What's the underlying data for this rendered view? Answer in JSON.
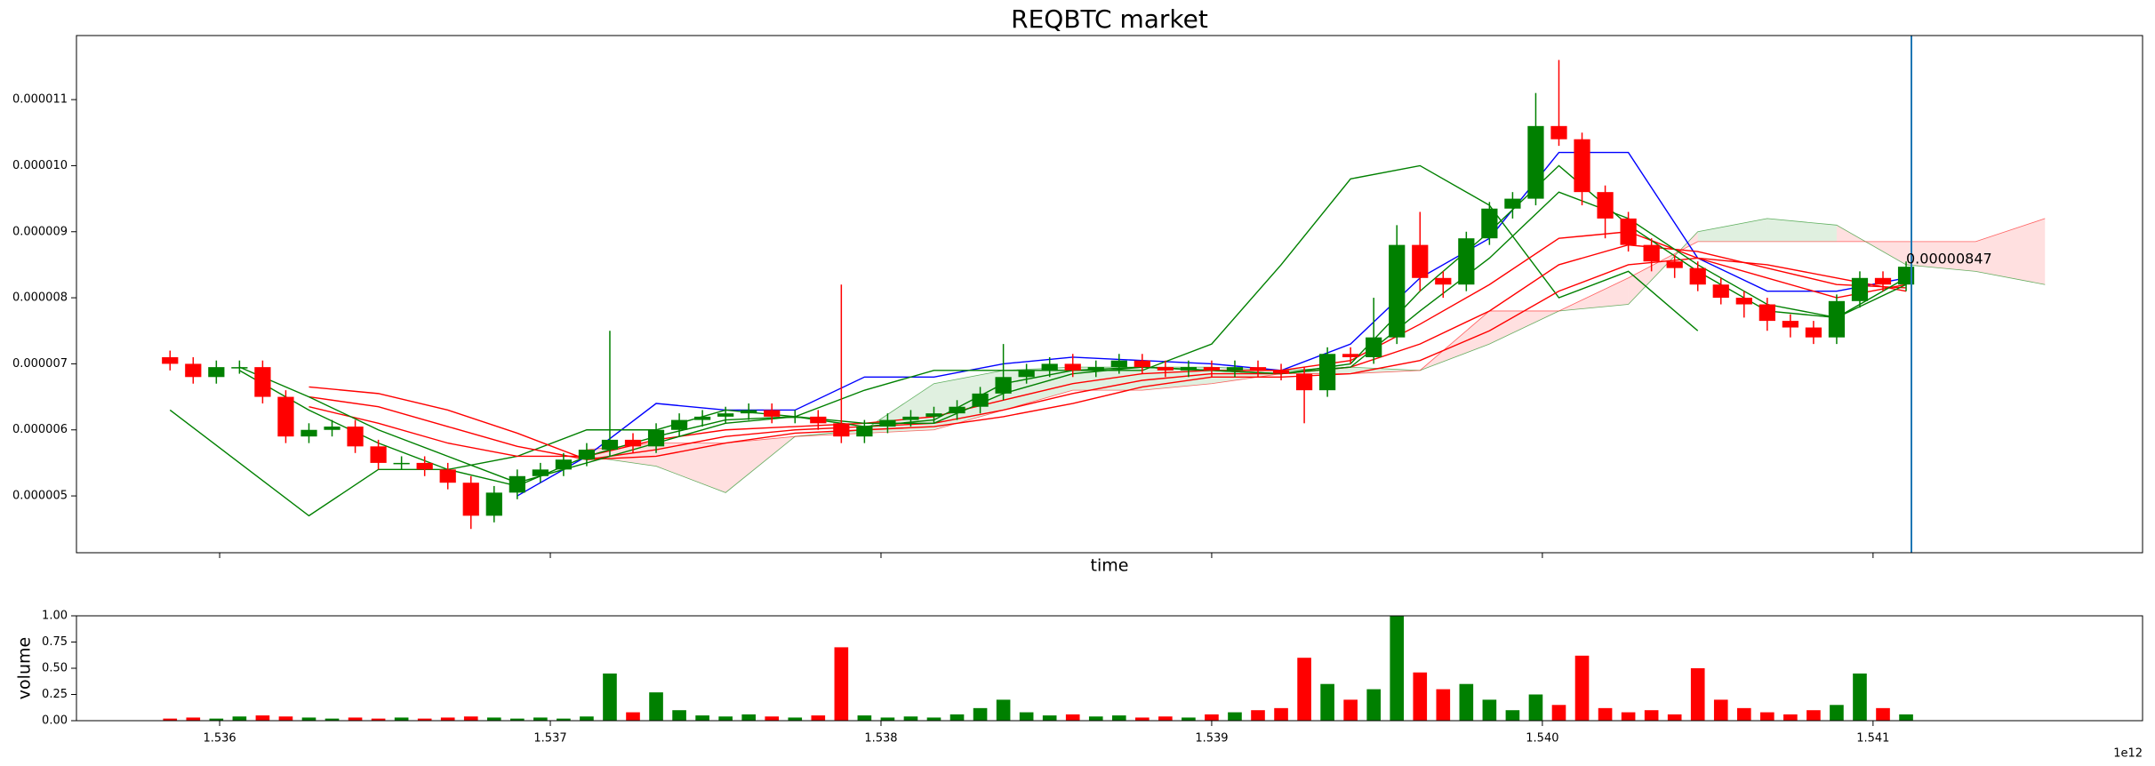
{
  "chart_data": {
    "type": "candlestick",
    "title": "REQBTC market",
    "x_label": "time",
    "y_label": "volume",
    "x_offset_label": "1e12",
    "xlim": [
      1.535567,
      1.541815
    ],
    "ylim": [
      4.14e-06,
      1.197e-05
    ],
    "xticks": [
      1.536,
      1.537,
      1.538,
      1.539,
      1.54,
      {
        "value": 1.54,
        "label": "1.540"
      },
      1.541
    ],
    "yticks": [
      {
        "value": 5e-06,
        "label": "0.000005"
      },
      {
        "value": 6e-06,
        "label": "0.000006"
      },
      {
        "value": 7e-06,
        "label": "0.000007"
      },
      {
        "value": 8e-06,
        "label": "0.000008"
      },
      {
        "value": 9e-06,
        "label": "0.000009"
      },
      {
        "value": 1e-05,
        "label": "0.000010"
      },
      {
        "value": 1.1e-05,
        "label": "0.000011"
      }
    ],
    "up_color": "#008000",
    "down_color": "#ff0000",
    "x": [
      1.53585,
      1.53592,
      1.53599,
      1.53606,
      1.53613,
      1.5362,
      1.53627,
      1.53634,
      1.53641,
      1.53648,
      1.53655,
      1.53662,
      1.53669,
      1.53676,
      1.53683,
      1.5369,
      1.53697,
      1.53704,
      1.53711,
      1.53718,
      1.53725,
      1.53732,
      1.53739,
      1.53746,
      1.53753,
      1.5376,
      1.53767,
      1.53774,
      1.53781,
      1.53788,
      1.53795,
      1.53802,
      1.53809,
      1.53816,
      1.53823,
      1.5383,
      1.53837,
      1.53844,
      1.53851,
      1.53858,
      1.53865,
      1.53872,
      1.53879,
      1.53886,
      1.53893,
      1.539,
      1.53907,
      1.53914,
      1.53921,
      1.53928,
      1.53935,
      1.53942,
      1.53949,
      1.53956,
      1.53963,
      1.5397,
      1.53977,
      1.53984,
      1.53991,
      1.53998,
      1.54005,
      1.54012,
      1.54019,
      1.54026,
      1.54033,
      1.5404,
      1.54047,
      1.54054,
      1.54061,
      1.54068,
      1.54075,
      1.54082,
      1.54089,
      1.54096,
      1.54103,
      1.5411
    ],
    "open": [
      7.1e-06,
      7e-06,
      6.8e-06,
      6.95e-06,
      6.95e-06,
      6.5e-06,
      5.9e-06,
      6e-06,
      6.05e-06,
      5.75e-06,
      5.5e-06,
      5.5e-06,
      5.4e-06,
      5.2e-06,
      4.7e-06,
      5.05e-06,
      5.3e-06,
      5.4e-06,
      5.55e-06,
      5.7e-06,
      5.85e-06,
      5.75e-06,
      6e-06,
      6.15e-06,
      6.2e-06,
      6.25e-06,
      6.3e-06,
      6.2e-06,
      6.2e-06,
      6.1e-06,
      5.9e-06,
      6.05e-06,
      6.15e-06,
      6.2e-06,
      6.25e-06,
      6.35e-06,
      6.55e-06,
      6.8e-06,
      6.9e-06,
      7e-06,
      6.9e-06,
      6.95e-06,
      7.05e-06,
      6.95e-06,
      6.9e-06,
      6.95e-06,
      6.9e-06,
      6.95e-06,
      6.9e-06,
      6.85e-06,
      6.6e-06,
      7.15e-06,
      7.1e-06,
      7.4e-06,
      8.8e-06,
      8.3e-06,
      8.2e-06,
      8.9e-06,
      9.35e-06,
      9.5e-06,
      1.06e-05,
      1.04e-05,
      9.6e-06,
      9.2e-06,
      8.8e-06,
      8.55e-06,
      8.45e-06,
      8.2e-06,
      8e-06,
      7.9e-06,
      7.65e-06,
      7.55e-06,
      7.4e-06,
      7.95e-06,
      8.3e-06,
      8.2e-06
    ],
    "high": [
      7.2e-06,
      7.1e-06,
      7.05e-06,
      7.05e-06,
      7.05e-06,
      6.6e-06,
      6.1e-06,
      6.15e-06,
      6.15e-06,
      5.85e-06,
      5.6e-06,
      5.6e-06,
      5.5e-06,
      5.3e-06,
      5.15e-06,
      5.4e-06,
      5.5e-06,
      5.65e-06,
      5.8e-06,
      7.5e-06,
      5.95e-06,
      6.1e-06,
      6.25e-06,
      6.3e-06,
      6.35e-06,
      6.4e-06,
      6.4e-06,
      6.3e-06,
      6.3e-06,
      8.2e-06,
      6.15e-06,
      6.25e-06,
      6.3e-06,
      6.35e-06,
      6.45e-06,
      6.65e-06,
      7.3e-06,
      7e-06,
      7.1e-06,
      7.15e-06,
      7.05e-06,
      7.15e-06,
      7.15e-06,
      7.05e-06,
      7.05e-06,
      7.05e-06,
      7.05e-06,
      7.05e-06,
      7e-06,
      6.95e-06,
      7.25e-06,
      7.25e-06,
      8e-06,
      9.1e-06,
      9.3e-06,
      8.4e-06,
      9e-06,
      9.45e-06,
      9.6e-06,
      1.11e-05,
      1.16e-05,
      1.05e-05,
      9.7e-06,
      9.3e-06,
      8.9e-06,
      8.65e-06,
      8.55e-06,
      8.3e-06,
      8.1e-06,
      8e-06,
      7.75e-06,
      7.65e-06,
      8.05e-06,
      8.4e-06,
      8.4e-06,
      8.55e-06
    ],
    "low": [
      6.9e-06,
      6.7e-06,
      6.7e-06,
      6.85e-06,
      6.4e-06,
      5.8e-06,
      5.8e-06,
      5.9e-06,
      5.65e-06,
      5.4e-06,
      5.4e-06,
      5.3e-06,
      5.1e-06,
      4.5e-06,
      4.6e-06,
      4.95e-06,
      5.2e-06,
      5.3e-06,
      5.45e-06,
      5.6e-06,
      5.65e-06,
      5.65e-06,
      5.9e-06,
      6.05e-06,
      6.1e-06,
      6.15e-06,
      6.1e-06,
      6.1e-06,
      6e-06,
      5.8e-06,
      5.8e-06,
      5.95e-06,
      6.05e-06,
      6.1e-06,
      6.15e-06,
      6.25e-06,
      6.45e-06,
      6.7e-06,
      6.8e-06,
      6.8e-06,
      6.8e-06,
      6.85e-06,
      6.85e-06,
      6.8e-06,
      6.8e-06,
      6.8e-06,
      6.8e-06,
      6.8e-06,
      6.75e-06,
      6.1e-06,
      6.5e-06,
      7e-06,
      7e-06,
      7.3e-06,
      8.1e-06,
      8e-06,
      8.1e-06,
      8.8e-06,
      9.2e-06,
      9.4e-06,
      1.03e-05,
      9.4e-06,
      8.9e-06,
      8.7e-06,
      8.4e-06,
      8.3e-06,
      8.1e-06,
      7.9e-06,
      7.7e-06,
      7.5e-06,
      7.4e-06,
      7.3e-06,
      7.3e-06,
      7.85e-06,
      8.1e-06,
      8.1e-06
    ],
    "close": [
      7e-06,
      6.8e-06,
      6.95e-06,
      6.95e-06,
      6.5e-06,
      5.9e-06,
      6e-06,
      6.05e-06,
      5.75e-06,
      5.5e-06,
      5.5e-06,
      5.4e-06,
      5.2e-06,
      4.7e-06,
      5.05e-06,
      5.3e-06,
      5.4e-06,
      5.55e-06,
      5.7e-06,
      5.85e-06,
      5.75e-06,
      6e-06,
      6.15e-06,
      6.2e-06,
      6.25e-06,
      6.3e-06,
      6.2e-06,
      6.2e-06,
      6.1e-06,
      5.9e-06,
      6.05e-06,
      6.15e-06,
      6.2e-06,
      6.25e-06,
      6.35e-06,
      6.55e-06,
      6.8e-06,
      6.9e-06,
      7e-06,
      6.9e-06,
      6.95e-06,
      7.05e-06,
      6.95e-06,
      6.9e-06,
      6.95e-06,
      6.9e-06,
      6.95e-06,
      6.9e-06,
      6.85e-06,
      6.6e-06,
      7.15e-06,
      7.1e-06,
      7.4e-06,
      8.8e-06,
      8.3e-06,
      8.2e-06,
      8.9e-06,
      9.35e-06,
      9.5e-06,
      1.06e-05,
      1.04e-05,
      9.6e-06,
      9.2e-06,
      8.8e-06,
      8.55e-06,
      8.45e-06,
      8.2e-06,
      8e-06,
      7.9e-06,
      7.65e-06,
      7.55e-06,
      7.4e-06,
      7.95e-06,
      8.3e-06,
      8.2e-06,
      8.47e-06
    ],
    "lines": {
      "x": [
        1.53585,
        1.53606,
        1.53627,
        1.53648,
        1.53669,
        1.5369,
        1.53711,
        1.53732,
        1.53753,
        1.53774,
        1.53795,
        1.53816,
        1.53837,
        1.53858,
        1.53879,
        1.539,
        1.53921,
        1.53942,
        1.53963,
        1.53984,
        1.54005,
        1.54026,
        1.54047,
        1.54068,
        1.54089,
        1.5411
      ],
      "series": [
        {
          "color": "#0000ff",
          "values": [
            null,
            null,
            null,
            null,
            null,
            5e-06,
            5.6e-06,
            6.4e-06,
            6.3e-06,
            6.3e-06,
            6.8e-06,
            6.8e-06,
            7e-06,
            7.1e-06,
            7.05e-06,
            7e-06,
            6.9e-06,
            7.3e-06,
            8.3e-06,
            8.9e-06,
            1.02e-05,
            1.02e-05,
            8.6e-06,
            8.1e-06,
            8.1e-06,
            8.3e-06
          ]
        },
        {
          "color": "#008000",
          "values": [
            6.3e-06,
            5.5e-06,
            4.7e-06,
            5.4e-06,
            5.4e-06,
            5.6e-06,
            6e-06,
            6e-06,
            6.3e-06,
            6.2e-06,
            6.6e-06,
            6.9e-06,
            6.9e-06,
            6.9e-06,
            6.9e-06,
            7.3e-06,
            8.5e-06,
            9.8e-06,
            1e-05,
            9.4e-06,
            8e-06,
            8.4e-06,
            7.5e-06,
            null,
            null,
            null
          ]
        },
        {
          "color": "#ff0000",
          "values": [
            null,
            null,
            6.35e-06,
            6.1e-06,
            5.8e-06,
            5.6e-06,
            5.6e-06,
            5.85e-06,
            6e-06,
            6.05e-06,
            6.1e-06,
            6.2e-06,
            6.45e-06,
            6.7e-06,
            6.85e-06,
            6.9e-06,
            6.9e-06,
            7.05e-06,
            7.6e-06,
            8.2e-06,
            8.9e-06,
            9e-06,
            8.6e-06,
            8.3e-06,
            8e-06,
            8.2e-06
          ]
        },
        {
          "color": "#ff0000",
          "values": [
            null,
            null,
            6.5e-06,
            6.35e-06,
            6.05e-06,
            5.75e-06,
            5.55e-06,
            5.7e-06,
            5.9e-06,
            6e-06,
            6.05e-06,
            6.1e-06,
            6.3e-06,
            6.55e-06,
            6.75e-06,
            6.85e-06,
            6.85e-06,
            6.95e-06,
            7.3e-06,
            7.8e-06,
            8.5e-06,
            8.8e-06,
            8.7e-06,
            8.45e-06,
            8.2e-06,
            8.15e-06
          ]
        },
        {
          "color": "#ff0000",
          "values": [
            null,
            null,
            6.65e-06,
            6.55e-06,
            6.3e-06,
            5.95e-06,
            5.55e-06,
            5.6e-06,
            5.8e-06,
            5.95e-06,
            6e-06,
            6.05e-06,
            6.2e-06,
            6.4e-06,
            6.65e-06,
            6.8e-06,
            6.8e-06,
            6.85e-06,
            7.05e-06,
            7.5e-06,
            8.1e-06,
            8.5e-06,
            8.6e-06,
            8.5e-06,
            8.3e-06,
            8.1e-06
          ]
        },
        {
          "color": "#008000",
          "values": [
            null,
            6.9e-06,
            6.3e-06,
            5.8e-06,
            5.4e-06,
            5.15e-06,
            5.6e-06,
            5.9e-06,
            6.15e-06,
            6.2e-06,
            6.05e-06,
            6.15e-06,
            6.7e-06,
            6.9e-06,
            6.95e-06,
            6.9e-06,
            6.85e-06,
            7e-06,
            8.1e-06,
            9e-06,
            1e-05,
            9.1e-06,
            8.4e-06,
            7.8e-06,
            7.7e-06,
            8.3e-06
          ]
        },
        {
          "color": "#008000",
          "values": [
            null,
            6.95e-06,
            6.5e-06,
            6e-06,
            5.6e-06,
            5.2e-06,
            5.5e-06,
            5.8e-06,
            6.1e-06,
            6.2e-06,
            6.1e-06,
            6.1e-06,
            6.55e-06,
            6.85e-06,
            6.95e-06,
            6.9e-06,
            6.85e-06,
            6.95e-06,
            7.8e-06,
            8.6e-06,
            9.6e-06,
            9.2e-06,
            8.5e-06,
            7.9e-06,
            7.7e-06,
            8.2e-06
          ]
        }
      ]
    },
    "cloud": {
      "x": [
        1.53711,
        1.53732,
        1.53753,
        1.53774,
        1.53795,
        1.53816,
        1.53837,
        1.53858,
        1.53879,
        1.539,
        1.53921,
        1.53942,
        1.53963,
        1.53984,
        1.54005,
        1.54026,
        1.54047,
        1.54068,
        1.54089,
        1.5411,
        1.54131,
        1.54152
      ],
      "span_a": [
        5.6e-06,
        5.45e-06,
        5.05e-06,
        5.9e-06,
        6e-06,
        6.7e-06,
        6.9e-06,
        6.95e-06,
        6.95e-06,
        6.95e-06,
        6.9e-06,
        6.95e-06,
        6.9e-06,
        7.3e-06,
        7.8e-06,
        7.9e-06,
        9e-06,
        9.2e-06,
        9.1e-06,
        8.5e-06,
        8.4e-06,
        8.2e-06
      ],
      "span_b": [
        5.7e-06,
        5.8e-06,
        5.8e-06,
        5.9e-06,
        5.95e-06,
        6e-06,
        6.3e-06,
        6.6e-06,
        6.6e-06,
        6.7e-06,
        6.85e-06,
        6.85e-06,
        6.9e-06,
        7.8e-06,
        7.8e-06,
        8.3e-06,
        8.85e-06,
        8.85e-06,
        8.85e-06,
        8.85e-06,
        8.85e-06,
        9.2e-06
      ],
      "a_color": "#008000",
      "b_color": "#ff0000"
    },
    "marker": {
      "x": 1.541116,
      "value": 8.47e-06,
      "color": "#1f77b4"
    },
    "volume": {
      "values": [
        0.02,
        0.03,
        0.02,
        0.04,
        0.05,
        0.04,
        0.03,
        0.02,
        0.03,
        0.02,
        0.03,
        0.02,
        0.03,
        0.04,
        0.03,
        0.02,
        0.03,
        0.02,
        0.04,
        0.45,
        0.08,
        0.27,
        0.1,
        0.05,
        0.04,
        0.06,
        0.04,
        0.03,
        0.05,
        0.7,
        0.05,
        0.03,
        0.04,
        0.03,
        0.06,
        0.12,
        0.2,
        0.08,
        0.05,
        0.06,
        0.04,
        0.05,
        0.03,
        0.04,
        0.03,
        0.06,
        0.08,
        0.1,
        0.12,
        0.6,
        0.35,
        0.2,
        0.3,
        1.0,
        0.46,
        0.3,
        0.35,
        0.2,
        0.1,
        0.25,
        0.15,
        0.62,
        0.12,
        0.08,
        0.1,
        0.06,
        0.5,
        0.2,
        0.12,
        0.08,
        0.06,
        0.1,
        0.15,
        0.45,
        0.12,
        0.06
      ],
      "ylim": [
        0,
        1
      ],
      "yticks": [
        {
          "value": 0,
          "label": "0.00"
        },
        {
          "value": 0.25,
          "label": "0.25"
        },
        {
          "value": 0.5,
          "label": "0.50"
        },
        {
          "value": 0.75,
          "label": "0.75"
        },
        {
          "value": 1,
          "label": "1.00"
        }
      ]
    }
  }
}
